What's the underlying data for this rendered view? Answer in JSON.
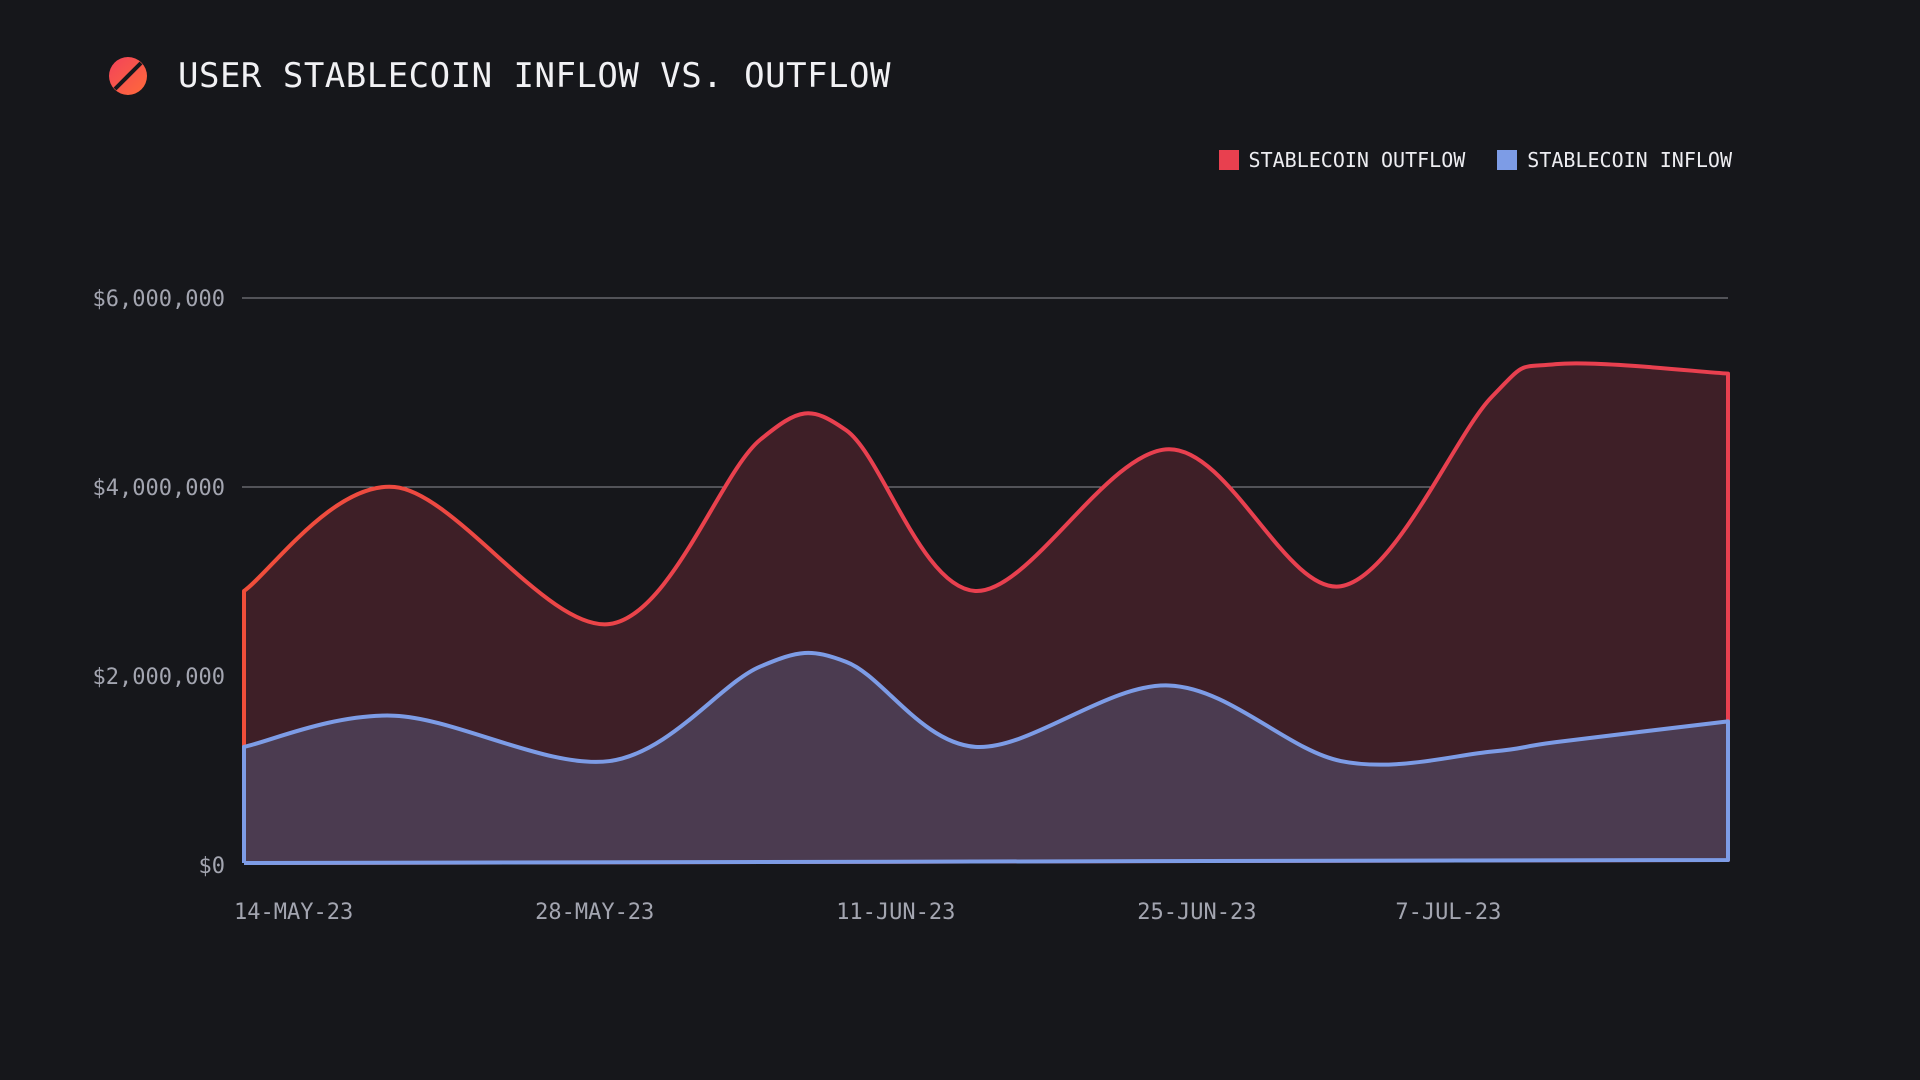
{
  "title": "USER STABLECOIN INFLOW VS. OUTFLOW",
  "logo_icon": "slashed-circle-logo",
  "colors": {
    "background": "#16171b",
    "outflow_line": "#e8404f",
    "outflow_line_start": "#f04e3a",
    "outflow_fill": "#3e1f27",
    "inflow_line": "#7d9ce6",
    "inflow_fill": "#4b3b50",
    "grid": "#8e8f96",
    "logo_start": "#f2435a",
    "logo_end": "#ff6a3a"
  },
  "chart_data": {
    "type": "area",
    "title": "USER STABLECOIN INFLOW VS. OUTFLOW",
    "x_tick_labels": [
      "14-MAY-23",
      "28-MAY-23",
      "11-JUN-23",
      "25-JUN-23",
      "7-JUL-23"
    ],
    "x_tick_dates": [
      "2023-05-14",
      "2023-05-28",
      "2023-06-11",
      "2023-06-25",
      "2023-07-07"
    ],
    "y_tick_labels": [
      "$0",
      "$2,000,000",
      "$4,000,000",
      "$6,000,000"
    ],
    "y_tick_values": [
      0,
      2000000,
      4000000,
      6000000
    ],
    "xlim": [
      "2023-05-14",
      "2023-07-22"
    ],
    "ylim": [
      0,
      6000000
    ],
    "grid": true,
    "legend_position": "top-right",
    "x": [
      "2023-05-14",
      "2023-05-21",
      "2023-05-31",
      "2023-06-07",
      "2023-06-11",
      "2023-06-17",
      "2023-06-26",
      "2023-07-04",
      "2023-07-11",
      "2023-07-14",
      "2023-07-22"
    ],
    "series": [
      {
        "name": "STABLECOIN OUTFLOW",
        "color": "#e8404f",
        "values": [
          2900000,
          4000000,
          2550000,
          4500000,
          4600000,
          2900000,
          4400000,
          2950000,
          4950000,
          5300000,
          5200000
        ]
      },
      {
        "name": "STABLECOIN INFLOW",
        "color": "#7d9ce6",
        "values": [
          1250000,
          1580000,
          1100000,
          2100000,
          2150000,
          1250000,
          1900000,
          1100000,
          1200000,
          1300000,
          1520000
        ]
      }
    ]
  }
}
